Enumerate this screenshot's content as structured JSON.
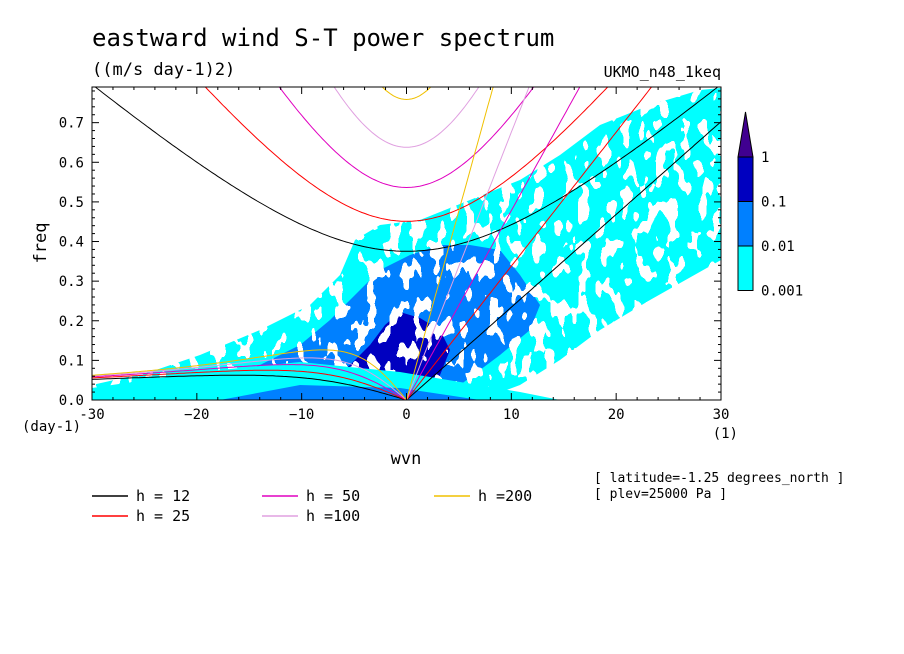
{
  "chart_data": {
    "type": "heatmap",
    "title": "eastward wind S-T power spectrum",
    "subtitle": "((m/s day-1)2)",
    "model": "UKMO_n48_1keq",
    "xlabel": "wvn",
    "ylabel": "freq",
    "x_unit": "(1)",
    "y_unit": "(day-1)",
    "xlim": [
      -30,
      30
    ],
    "ylim": [
      0,
      0.79
    ],
    "x_ticks": [
      -30,
      -20,
      -10,
      0,
      10,
      20,
      30
    ],
    "x_tick_labels": [
      "-30",
      "−20",
      "−10",
      "0",
      "10",
      "20",
      "30"
    ],
    "y_ticks": [
      0.0,
      0.1,
      0.2,
      0.3,
      0.4,
      0.5,
      0.6,
      0.7
    ],
    "y_tick_labels": [
      "0.0",
      "0.1",
      "0.2",
      "0.3",
      "0.4",
      "0.5",
      "0.6",
      "0.7"
    ],
    "colorbar": {
      "levels": [
        0.001,
        0.01,
        0.1,
        1
      ],
      "labels": [
        "0.001",
        "0.01",
        "0.1",
        "1"
      ],
      "colors": [
        "#00ffff",
        "#0080ff",
        "#0000c0",
        "#400090"
      ]
    },
    "dispersion_curves": [
      {
        "h": 12,
        "label": "h = 12",
        "color": "#000000"
      },
      {
        "h": 25,
        "label": "h = 25",
        "color": "#ff0000"
      },
      {
        "h": 50,
        "label": "h = 50",
        "color": "#e000c0"
      },
      {
        "h": 100,
        "label": "h =100",
        "color": "#e0a0e0"
      },
      {
        "h": 200,
        "label": "h =200",
        "color": "#f0c000"
      }
    ],
    "annotations": [
      "[ latitude=-1.25 degrees_north ]",
      "[ plev=25000 Pa ]"
    ]
  }
}
